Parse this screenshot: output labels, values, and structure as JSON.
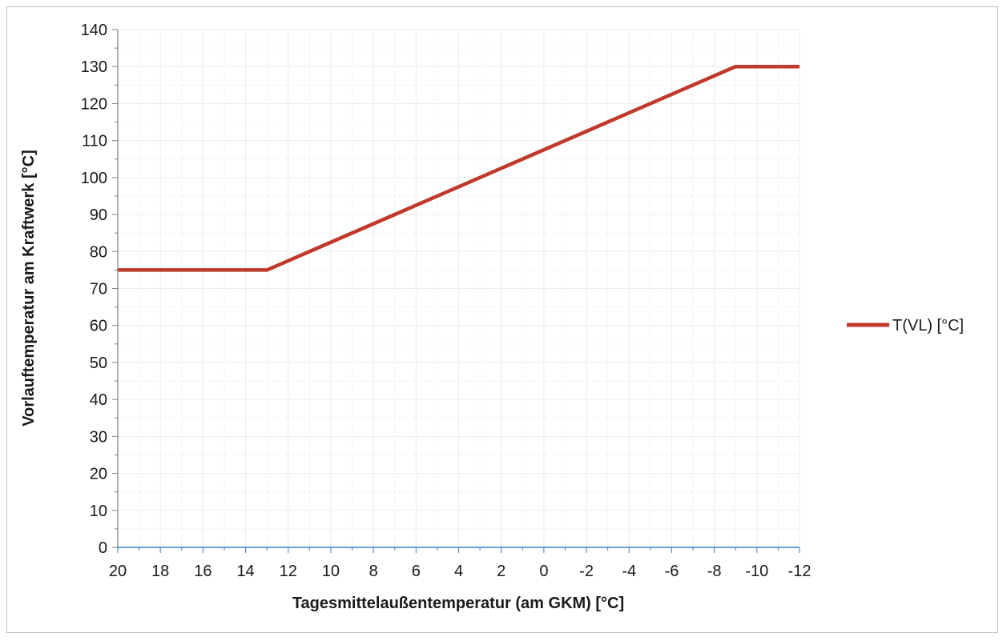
{
  "chart_data": {
    "type": "line",
    "xlabel": "Tagesmittelaußentemperatur (am GKM) [°C]",
    "ylabel": "Vorlauftemperatur am Kraftwerk [°C]",
    "xlim": [
      20,
      -12
    ],
    "x_reversed": true,
    "ylim": [
      0,
      140
    ],
    "x_ticks": [
      "20",
      "18",
      "16",
      "14",
      "12",
      "10",
      "8",
      "6",
      "4",
      "2",
      "0",
      "-2",
      "-4",
      "-6",
      "-8",
      "-10",
      "-12"
    ],
    "y_ticks": [
      "0",
      "10",
      "20",
      "30",
      "40",
      "50",
      "60",
      "70",
      "80",
      "90",
      "100",
      "110",
      "120",
      "130",
      "140"
    ],
    "grid": true,
    "legend_position": "right",
    "series": [
      {
        "name": "T(VL) [°C]",
        "color": "#c0392b",
        "x": [
          20,
          13,
          -9,
          -12
        ],
        "y": [
          75,
          75,
          130,
          130
        ]
      }
    ]
  }
}
